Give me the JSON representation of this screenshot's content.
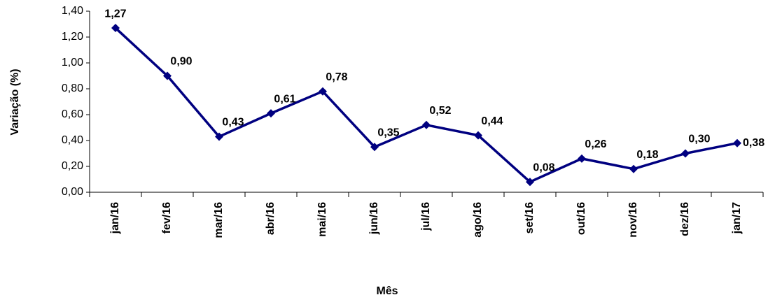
{
  "chart_data": {
    "type": "line",
    "x_label": "Mês",
    "y_label": "Variação (%)",
    "categories": [
      "jan/16",
      "fev/16",
      "mar/16",
      "abr/16",
      "mai/16",
      "jun/16",
      "jul/16",
      "ago/16",
      "set/16",
      "out/16",
      "nov/16",
      "dez/16",
      "jan/17"
    ],
    "values": [
      1.27,
      0.9,
      0.43,
      0.61,
      0.78,
      0.35,
      0.52,
      0.44,
      0.08,
      0.26,
      0.18,
      0.3,
      0.38
    ],
    "value_labels": [
      "1,27",
      "0,90",
      "0,43",
      "0,61",
      "0,78",
      "0,35",
      "0,52",
      "0,44",
      "0,08",
      "0,26",
      "0,18",
      "0,30",
      "0,38"
    ],
    "color": "#000080",
    "ylim": [
      0,
      1.4
    ],
    "yticks": [
      {
        "value": 0,
        "label": "0,00"
      },
      {
        "value": 0.2,
        "label": "0,20"
      },
      {
        "value": 0.4,
        "label": "0,40"
      },
      {
        "value": 0.6,
        "label": "0,60"
      },
      {
        "value": 0.8,
        "label": "0,80"
      },
      {
        "value": 1.0,
        "label": "1,00"
      },
      {
        "value": 1.2,
        "label": "1,20"
      },
      {
        "value": 1.4,
        "label": "1,40"
      }
    ]
  }
}
